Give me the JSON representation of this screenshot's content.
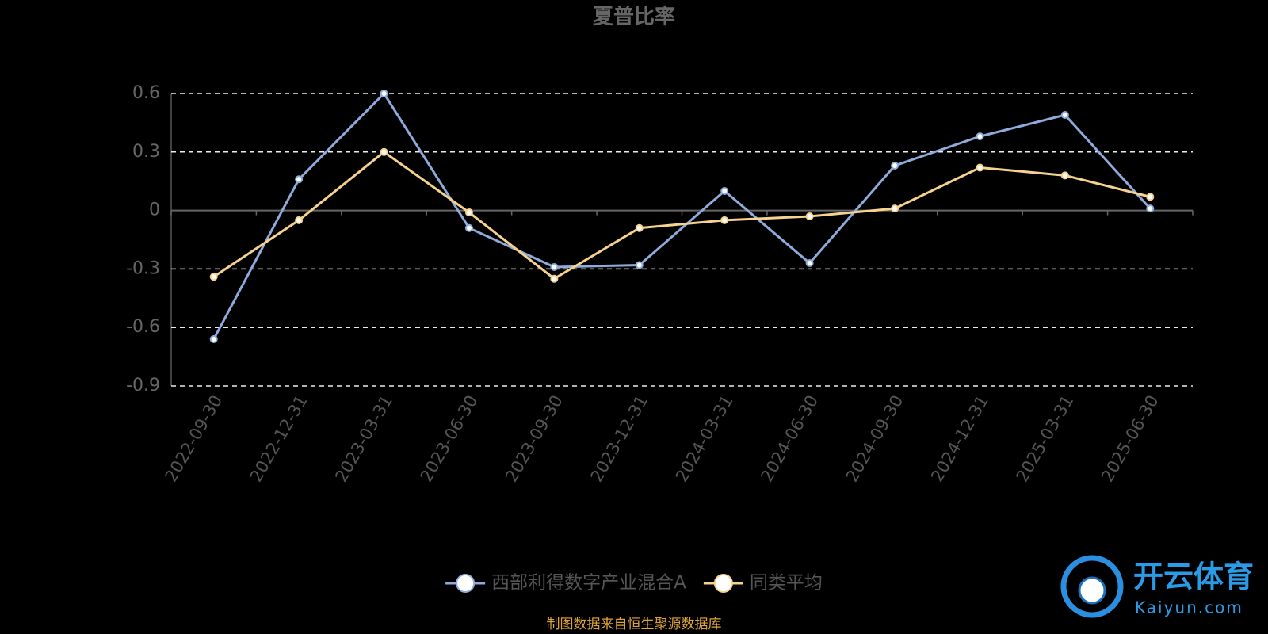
{
  "chart_data": {
    "type": "line",
    "title": "夏普比率",
    "categories": [
      "2022-09-30",
      "2022-12-31",
      "2023-03-31",
      "2023-06-30",
      "2023-09-30",
      "2023-12-31",
      "2024-03-31",
      "2024-06-30",
      "2024-09-30",
      "2024-12-31",
      "2025-03-31",
      "2025-06-30"
    ],
    "series": [
      {
        "name": "西部利得数字产业混合A",
        "color": "#8fabdc",
        "values": [
          -0.66,
          0.16,
          0.6,
          -0.09,
          -0.29,
          -0.28,
          0.1,
          -0.27,
          0.23,
          0.38,
          0.49,
          0.01
        ]
      },
      {
        "name": "同类平均",
        "color": "#f7d28e",
        "values": [
          -0.34,
          -0.05,
          0.3,
          -0.01,
          -0.35,
          -0.09,
          -0.05,
          -0.03,
          0.01,
          0.22,
          0.18,
          0.07
        ]
      }
    ],
    "ylim": [
      -0.9,
      0.6
    ],
    "yticks": [
      0.6,
      0.3,
      0,
      -0.3,
      -0.6,
      -0.9
    ],
    "grid": true,
    "source": "制图数据来自恒生聚源数据库",
    "watermark": {
      "text": "开云体育",
      "sub": "Kaiyun.com"
    }
  }
}
